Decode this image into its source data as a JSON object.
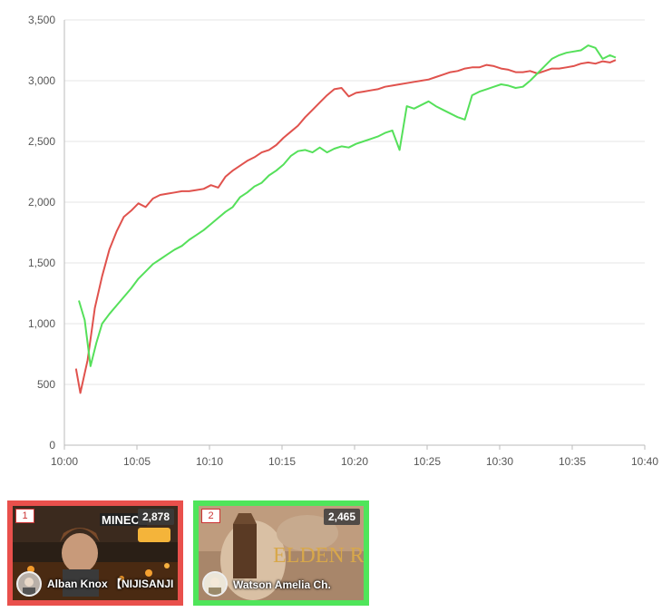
{
  "chart_data": {
    "type": "line",
    "title": "",
    "xlabel": "",
    "ylabel": "",
    "ylim": [
      0,
      3500
    ],
    "yticks": [
      0,
      500,
      1000,
      1500,
      2000,
      2500,
      3000,
      3500
    ],
    "ytick_labels": [
      "0",
      "500",
      "1,000",
      "1,500",
      "2,000",
      "2,500",
      "3,000",
      "3,500"
    ],
    "xlim": [
      0,
      40
    ],
    "xticks": [
      0,
      5,
      10,
      15,
      20,
      25,
      30,
      35,
      40
    ],
    "xtick_labels": [
      "10:00",
      "10:05",
      "10:10",
      "10:15",
      "10:20",
      "10:25",
      "10:30",
      "10:35",
      "10:40"
    ],
    "x_unit": "minutes after 10:00",
    "grid": true,
    "legend": "none",
    "series": [
      {
        "color": "#e0524d",
        "x": [
          0.8,
          1.1,
          1.6,
          2.1,
          2.6,
          3.1,
          3.6,
          4.1,
          4.6,
          5.1,
          5.6,
          6.1,
          6.6,
          7.1,
          7.6,
          8.1,
          8.6,
          9.1,
          9.6,
          10.1,
          10.6,
          11.1,
          11.6,
          12.1,
          12.6,
          13.1,
          13.6,
          14.1,
          14.6,
          15.1,
          15.6,
          16.1,
          16.6,
          17.1,
          17.6,
          18.1,
          18.6,
          19.1,
          19.6,
          20.1,
          20.6,
          21.1,
          21.6,
          22.1,
          22.6,
          23.1,
          23.6,
          24.1,
          24.6,
          25.1,
          25.6,
          26.1,
          26.6,
          27.1,
          27.6,
          28.1,
          28.6,
          29.1,
          29.6,
          30.1,
          30.6,
          31.1,
          31.6,
          32.1,
          32.6,
          33.1,
          33.6,
          34.1,
          34.6,
          35.1,
          35.6,
          36.1,
          36.6,
          37.1,
          37.6,
          38.0
        ],
        "values": [
          630,
          430,
          700,
          1130,
          1390,
          1610,
          1760,
          1880,
          1930,
          1990,
          1960,
          2030,
          2060,
          2070,
          2080,
          2090,
          2090,
          2100,
          2110,
          2140,
          2120,
          2210,
          2260,
          2300,
          2340,
          2370,
          2410,
          2430,
          2470,
          2530,
          2580,
          2630,
          2700,
          2760,
          2820,
          2880,
          2930,
          2940,
          2870,
          2900,
          2910,
          2920,
          2930,
          2950,
          2960,
          2970,
          2980,
          2990,
          3000,
          3010,
          3030,
          3050,
          3070,
          3080,
          3100,
          3110,
          3110,
          3130,
          3120,
          3100,
          3090,
          3070,
          3070,
          3080,
          3060,
          3080,
          3100,
          3100,
          3110,
          3120,
          3140,
          3150,
          3140,
          3160,
          3150,
          3170
        ]
      },
      {
        "color": "#55e05a",
        "x": [
          1.0,
          1.4,
          1.8,
          2.2,
          2.6,
          3.1,
          3.6,
          4.1,
          4.6,
          5.1,
          5.6,
          6.1,
          6.6,
          7.1,
          7.6,
          8.1,
          8.6,
          9.1,
          9.6,
          10.1,
          10.6,
          11.1,
          11.6,
          12.1,
          12.6,
          13.1,
          13.6,
          14.1,
          14.6,
          15.1,
          15.6,
          16.1,
          16.6,
          17.1,
          17.6,
          18.1,
          18.6,
          19.1,
          19.6,
          20.1,
          20.6,
          21.1,
          21.6,
          22.1,
          22.6,
          23.1,
          23.6,
          24.1,
          24.6,
          25.1,
          25.6,
          26.1,
          26.6,
          27.1,
          27.6,
          28.1,
          28.6,
          29.1,
          29.6,
          30.1,
          30.6,
          31.1,
          31.6,
          32.1,
          32.6,
          33.1,
          33.6,
          34.1,
          34.6,
          35.1,
          35.6,
          36.1,
          36.6,
          37.1,
          37.6,
          38.0
        ],
        "values": [
          1190,
          1030,
          650,
          840,
          1000,
          1080,
          1150,
          1220,
          1290,
          1370,
          1430,
          1490,
          1530,
          1570,
          1610,
          1640,
          1690,
          1730,
          1770,
          1820,
          1870,
          1920,
          1960,
          2040,
          2080,
          2130,
          2160,
          2220,
          2260,
          2310,
          2380,
          2420,
          2430,
          2410,
          2450,
          2410,
          2440,
          2460,
          2450,
          2480,
          2500,
          2520,
          2540,
          2570,
          2590,
          2430,
          2790,
          2770,
          2800,
          2830,
          2790,
          2760,
          2730,
          2700,
          2680,
          2880,
          2910,
          2930,
          2950,
          2970,
          2960,
          2940,
          2950,
          3000,
          3060,
          3120,
          3180,
          3210,
          3230,
          3240,
          3250,
          3290,
          3270,
          3180,
          3210,
          3190
        ]
      }
    ]
  },
  "streams": [
    {
      "rank": "1",
      "viewers": "2,878",
      "channel": "Alban Knox 【NIJISANJI",
      "border_color": "#e9504c",
      "thumb_text": "MINEC"
    },
    {
      "rank": "2",
      "viewers": "2,465",
      "channel": "Watson Amelia Ch.",
      "border_color": "#4fe55a",
      "thumb_text": "ELDEN RING"
    }
  ]
}
